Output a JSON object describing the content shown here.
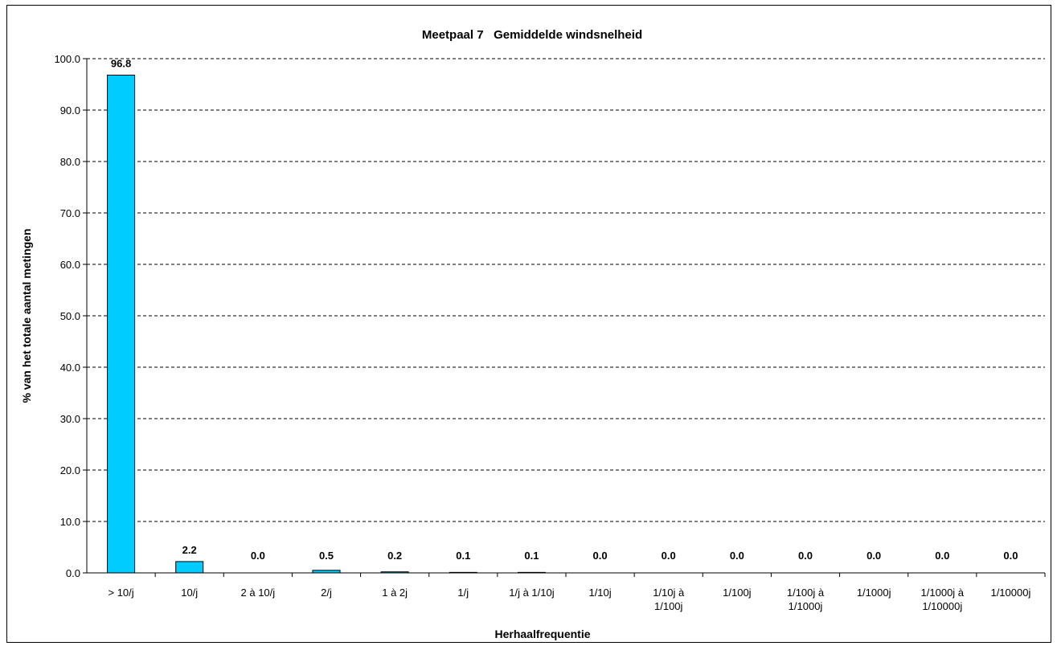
{
  "chart_data": {
    "type": "bar",
    "title": "Meetpaal 7   Gemiddelde windsnelheid",
    "xlabel": "Herhaalfrequentie",
    "ylabel": "% van het totale aantal metingen",
    "ylim": [
      0,
      100
    ],
    "yticks": [
      "0.0",
      "10.0",
      "20.0",
      "30.0",
      "40.0",
      "50.0",
      "60.0",
      "70.0",
      "80.0",
      "90.0",
      "100.0"
    ],
    "grid": true,
    "legend": "none",
    "bar_color": "#00CCFF",
    "categories": [
      "> 10/j",
      "10/j",
      "2 à 10/j",
      "2/j",
      "1 à 2j",
      "1/j",
      "1/j à 1/10j",
      "1/10j",
      "1/10j à\n1/100j",
      "1/100j",
      "1/100j à\n1/1000j",
      "1/1000j",
      "1/1000j à\n1/10000j",
      "1/10000j"
    ],
    "values": [
      96.8,
      2.2,
      0.0,
      0.5,
      0.2,
      0.1,
      0.1,
      0.0,
      0.0,
      0.0,
      0.0,
      0.0,
      0.0,
      0.0
    ],
    "data_labels": [
      "96.8",
      "2.2",
      "0.0",
      "0.5",
      "0.2",
      "0.1",
      "0.1",
      "0.0",
      "0.0",
      "0.0",
      "0.0",
      "0.0",
      "0.0",
      "0.0"
    ]
  }
}
